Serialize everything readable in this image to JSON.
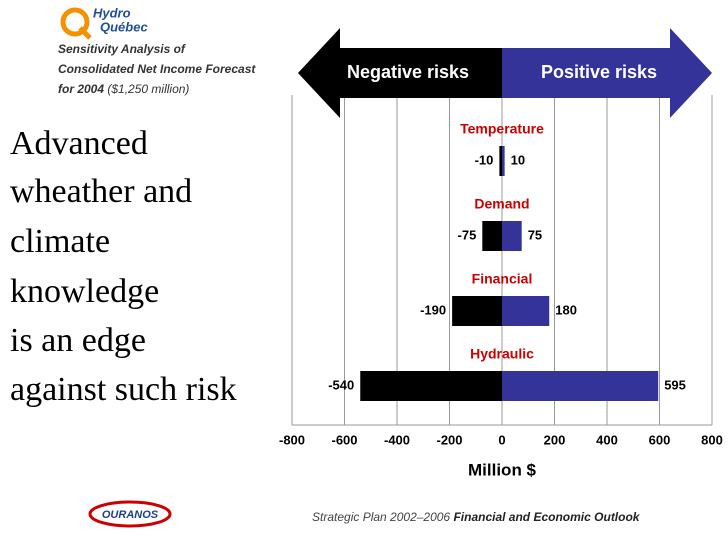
{
  "header": {
    "logo": "Hydro",
    "logo_2": "Québec",
    "subtitle": [
      "Sensitivity Analysis of",
      "Consolidated Net Income Forecast",
      "for 2004"
    ],
    "subtitle_note": "($1,250 million)"
  },
  "body": [
    "Advanced",
    "wheather and",
    "climate",
    "knowledge",
    "is an edge",
    "against such risk"
  ],
  "footer": {
    "logo": "OURANOS",
    "plan": "Strategic Plan 2002–2006",
    "plan_title": "Financial and Economic Outlook"
  },
  "chart_data": {
    "type": "bar",
    "categories": [
      "Temperature",
      "Demand",
      "Financial",
      "Hydraulic"
    ],
    "series": [
      {
        "name": "Negative risks",
        "color": "#000000",
        "values": [
          -10,
          -75,
          -190,
          -540
        ]
      },
      {
        "name": "Positive risks",
        "color": "#333399",
        "values": [
          10,
          75,
          180,
          595
        ]
      }
    ],
    "xlabel": "Million $",
    "xlim": [
      -800,
      800
    ],
    "xticks": [
      -800,
      -600,
      -400,
      -200,
      0,
      200,
      400,
      600,
      800
    ],
    "grid": true,
    "category_color": "#cc0000"
  }
}
